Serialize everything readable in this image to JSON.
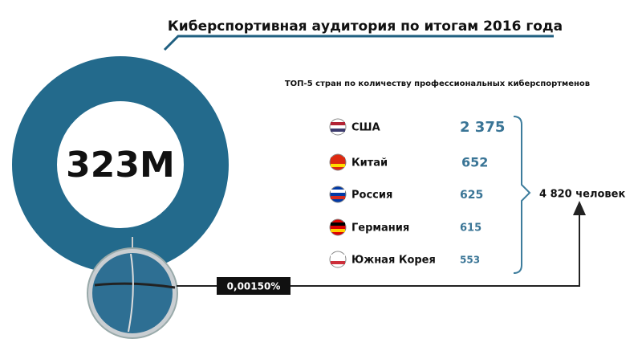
{
  "header": {
    "title": "Киберспортивная аудитория по итогам 2016 года"
  },
  "audience": {
    "total": "323M",
    "share": "0,00150%"
  },
  "top": {
    "subtitle": "ТОП-5 стран по количеству профессиональных киберспортменов",
    "rows": [
      [
        "США",
        "2 375"
      ],
      [
        "Китай",
        "652"
      ],
      [
        "Россия",
        "625"
      ],
      [
        "Германия",
        "615"
      ],
      [
        "Южная Корея",
        "553"
      ]
    ],
    "sum": "4 820 человек"
  }
}
